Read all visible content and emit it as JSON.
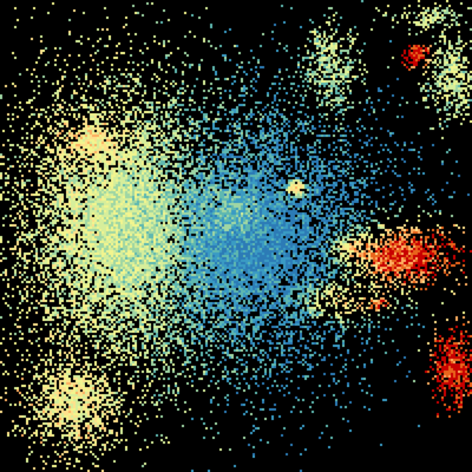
{
  "radar": {
    "background": "#000000",
    "palette": [
      "#2c7bb6",
      "#3a9bc4",
      "#5fb8b0",
      "#9fd6a4",
      "#d6ee9b",
      "#f2f58e",
      "#fee08b",
      "#fdae61",
      "#e8641c",
      "#c80000"
    ]
  }
}
